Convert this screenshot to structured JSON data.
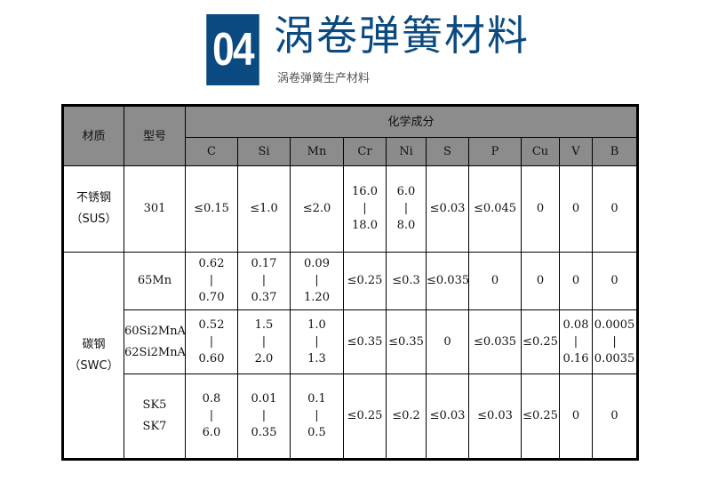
{
  "header": {
    "number": "04",
    "title": "涡卷弹簧材料",
    "subtitle": "涡卷弹簧生产材料",
    "accent": "#0b4a80"
  },
  "table": {
    "col_material": "材质",
    "col_model": "型号",
    "col_group": "化学成分",
    "elements": [
      "C",
      "Si",
      "Mn",
      "Cr",
      "Ni",
      "S",
      "P",
      "Cu",
      "V",
      "B"
    ],
    "header_bg": "#8c8c8c",
    "groups": [
      {
        "material": [
          "不锈钢",
          "（SUS）"
        ],
        "rows": [
          {
            "model": [
              "301"
            ],
            "cells": [
              [
                "≤0.15"
              ],
              [
                "≤1.0"
              ],
              [
                "≤2.0"
              ],
              [
                "16.0",
                "|",
                "18.0"
              ],
              [
                "6.0",
                "|",
                "8.0"
              ],
              [
                "≤0.03"
              ],
              [
                "≤0.045"
              ],
              [
                "0"
              ],
              [
                "0"
              ],
              [
                "0"
              ]
            ]
          }
        ]
      },
      {
        "material": [
          "碳钢",
          "（SWC）"
        ],
        "rows": [
          {
            "model": [
              "65Mn"
            ],
            "cells": [
              [
                "0.62",
                "|",
                "0.70"
              ],
              [
                "0.17",
                "|",
                "0.37"
              ],
              [
                "0.09",
                "|",
                "1.20"
              ],
              [
                "≤0.25"
              ],
              [
                "≤0.3"
              ],
              [
                "≤0.035"
              ],
              [
                "0"
              ],
              [
                "0"
              ],
              [
                "0"
              ],
              [
                "0"
              ]
            ]
          },
          {
            "model": [
              "60Si2MnA",
              "62Si2MnA"
            ],
            "cells": [
              [
                "0.52",
                "|",
                "0.60"
              ],
              [
                "1.5",
                "|",
                "2.0"
              ],
              [
                "1.0",
                "|",
                "1.3"
              ],
              [
                "≤0.35"
              ],
              [
                "≤0.35"
              ],
              [
                "0"
              ],
              [
                "≤0.035"
              ],
              [
                "≤0.25"
              ],
              [
                "0.08",
                "|",
                "0.16"
              ],
              [
                "0.0005",
                "|",
                "0.0035"
              ]
            ]
          },
          {
            "model": [
              "SK5",
              "SK7"
            ],
            "cells": [
              [
                "0.8",
                "|",
                "6.0"
              ],
              [
                "0.01",
                "|",
                "0.35"
              ],
              [
                "0.1",
                "|",
                "0.5"
              ],
              [
                "≤0.25"
              ],
              [
                "≤0.2"
              ],
              [
                "≤0.03"
              ],
              [
                "≤0.03"
              ],
              [
                "≤0.25"
              ],
              [
                "0"
              ],
              [
                "0"
              ]
            ]
          }
        ]
      }
    ]
  }
}
